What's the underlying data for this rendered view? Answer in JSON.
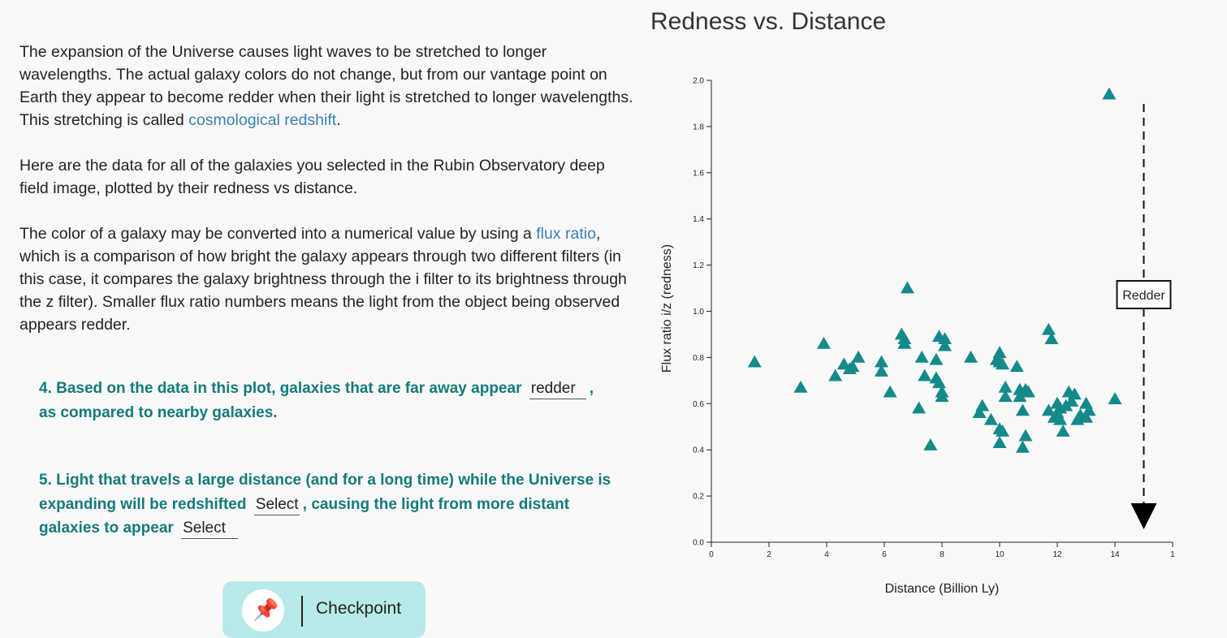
{
  "intro": {
    "p1_text": "The expansion of the Universe causes light waves to be stretched to longer wavelengths. The actual galaxy colors do not change, but from our vantage point on Earth they appear to become redder when their light is stretched to longer wavelengths. This stretching is called ",
    "p1_link": "cosmological redshift",
    "p1_end": ".",
    "p2_text": "Here are the data for all of the galaxies you selected in the Rubin Observatory deep field image, plotted by their redness vs distance.",
    "p3_text": "The color of a galaxy may be converted into a numerical value by using a ",
    "p3_link": "flux ratio",
    "p3_rest": ", which is a comparison of how bright the galaxy appears through two different filters (in this case, it compares the galaxy brightness through the i filter to its brightness through the z filter). Smaller flux ratio numbers means the light from the object being observed appears redder."
  },
  "q4": {
    "before": "4. Based on the data in this plot, galaxies that are far away appear",
    "answer": "redder",
    "after_comma": ",",
    "after": "as compared to nearby galaxies."
  },
  "q5": {
    "before": "5. Light that travels a large distance (and for a long time) while the Universe is expanding will be redshifted",
    "select1": "Select",
    "mid": ", causing the light from more distant galaxies to appear",
    "select2": "Select"
  },
  "checkpoint": {
    "icon": "pushpin-icon",
    "label": "Checkpoint"
  },
  "chart_data": {
    "type": "scatter",
    "title": "Redness vs. Distance",
    "xlabel": "Distance (Billion Ly)",
    "ylabel": "Flux ratio i/z (redness)",
    "xlim": [
      0,
      16
    ],
    "ylim": [
      0,
      2.0
    ],
    "x_ticks": [
      "0",
      "2",
      "4",
      "6",
      "8",
      "10",
      "12",
      "14",
      "1"
    ],
    "y_ticks": [
      "0.0",
      "0.2",
      "0.4",
      "0.6",
      "0.8",
      "1.0",
      "1.2",
      "1.4",
      "1.6",
      "1.8",
      "2.0"
    ],
    "marker": "triangle",
    "marker_color": "#148a8a",
    "annotation": "Redder",
    "annotation_arrow_x": 15,
    "points": [
      [
        1.5,
        0.78
      ],
      [
        3.1,
        0.67
      ],
      [
        3.9,
        0.86
      ],
      [
        4.3,
        0.72
      ],
      [
        4.6,
        0.77
      ],
      [
        4.8,
        0.75
      ],
      [
        4.9,
        0.76
      ],
      [
        5.1,
        0.8
      ],
      [
        5.9,
        0.78
      ],
      [
        5.9,
        0.74
      ],
      [
        6.2,
        0.65
      ],
      [
        6.6,
        0.9
      ],
      [
        6.7,
        0.88
      ],
      [
        6.7,
        0.86
      ],
      [
        6.8,
        1.1
      ],
      [
        7.2,
        0.58
      ],
      [
        7.3,
        0.8
      ],
      [
        7.4,
        0.72
      ],
      [
        7.6,
        0.42
      ],
      [
        7.8,
        0.71
      ],
      [
        7.8,
        0.79
      ],
      [
        7.9,
        0.89
      ],
      [
        7.9,
        0.69
      ],
      [
        8.0,
        0.65
      ],
      [
        8.0,
        0.63
      ],
      [
        8.1,
        0.88
      ],
      [
        8.1,
        0.85
      ],
      [
        9.0,
        0.8
      ],
      [
        9.3,
        0.56
      ],
      [
        9.4,
        0.59
      ],
      [
        9.7,
        0.53
      ],
      [
        9.9,
        0.79
      ],
      [
        10.0,
        0.82
      ],
      [
        10.0,
        0.78
      ],
      [
        10.0,
        0.43
      ],
      [
        10.0,
        0.49
      ],
      [
        10.1,
        0.77
      ],
      [
        10.1,
        0.48
      ],
      [
        10.2,
        0.67
      ],
      [
        10.2,
        0.63
      ],
      [
        10.6,
        0.76
      ],
      [
        10.7,
        0.66
      ],
      [
        10.7,
        0.63
      ],
      [
        10.8,
        0.57
      ],
      [
        10.8,
        0.41
      ],
      [
        10.9,
        0.46
      ],
      [
        10.9,
        0.66
      ],
      [
        11.0,
        0.65
      ],
      [
        11.7,
        0.92
      ],
      [
        11.8,
        0.88
      ],
      [
        11.7,
        0.57
      ],
      [
        11.9,
        0.54
      ],
      [
        12.0,
        0.6
      ],
      [
        12.0,
        0.56
      ],
      [
        12.1,
        0.53
      ],
      [
        12.1,
        0.58
      ],
      [
        12.2,
        0.48
      ],
      [
        12.3,
        0.59
      ],
      [
        12.4,
        0.65
      ],
      [
        12.5,
        0.61
      ],
      [
        12.6,
        0.64
      ],
      [
        12.7,
        0.53
      ],
      [
        12.8,
        0.55
      ],
      [
        13.0,
        0.6
      ],
      [
        13.0,
        0.54
      ],
      [
        13.1,
        0.57
      ],
      [
        13.8,
        1.94
      ],
      [
        14.0,
        0.62
      ]
    ]
  }
}
